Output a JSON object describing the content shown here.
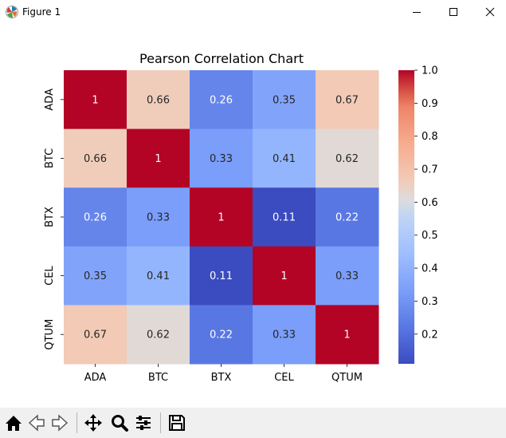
{
  "window": {
    "title": "Figure 1",
    "icon": "matplotlib-icon",
    "controls": [
      "minimize-icon",
      "maximize-icon",
      "close-icon"
    ]
  },
  "toolbar": {
    "buttons": [
      {
        "name": "home-icon",
        "action": "home"
      },
      {
        "name": "back-arrow-icon",
        "action": "back"
      },
      {
        "name": "forward-arrow-icon",
        "action": "forward"
      },
      {
        "name": "pan-icon",
        "action": "pan"
      },
      {
        "name": "zoom-icon",
        "action": "zoom"
      },
      {
        "name": "configure-subplots-icon",
        "action": "configure"
      },
      {
        "name": "save-icon",
        "action": "save"
      }
    ]
  },
  "chart_data": {
    "type": "heatmap",
    "title": "Pearson Correlation Chart",
    "xlabel": "",
    "ylabel": "",
    "x_categories": [
      "ADA",
      "BTC",
      "BTX",
      "CEL",
      "QTUM"
    ],
    "y_categories": [
      "ADA",
      "BTC",
      "BTX",
      "CEL",
      "QTUM"
    ],
    "values": [
      [
        1,
        0.66,
        0.26,
        0.35,
        0.67
      ],
      [
        0.66,
        1,
        0.33,
        0.41,
        0.62
      ],
      [
        0.26,
        0.33,
        1,
        0.11,
        0.22
      ],
      [
        0.35,
        0.41,
        0.11,
        1,
        0.33
      ],
      [
        0.67,
        0.62,
        0.22,
        0.33,
        1
      ]
    ],
    "labels": [
      [
        "1",
        "0.66",
        "0.26",
        "0.35",
        "0.67"
      ],
      [
        "0.66",
        "1",
        "0.33",
        "0.41",
        "0.62"
      ],
      [
        "0.26",
        "0.33",
        "1",
        "0.11",
        "0.22"
      ],
      [
        "0.35",
        "0.41",
        "0.11",
        "1",
        "0.33"
      ],
      [
        "0.67",
        "0.62",
        "0.22",
        "0.33",
        "1"
      ]
    ],
    "colormap": "coolwarm",
    "vmin": 0.11,
    "vmax": 1.0,
    "colorbar": {
      "ticks": [
        0.2,
        0.3,
        0.4,
        0.5,
        0.6,
        0.7,
        0.8,
        0.9,
        1.0
      ],
      "tick_labels": [
        "0.2",
        "0.3",
        "0.4",
        "0.5",
        "0.6",
        "0.7",
        "0.8",
        "0.9",
        "1.0"
      ]
    },
    "grid": false,
    "legend": "colorbar-right"
  }
}
